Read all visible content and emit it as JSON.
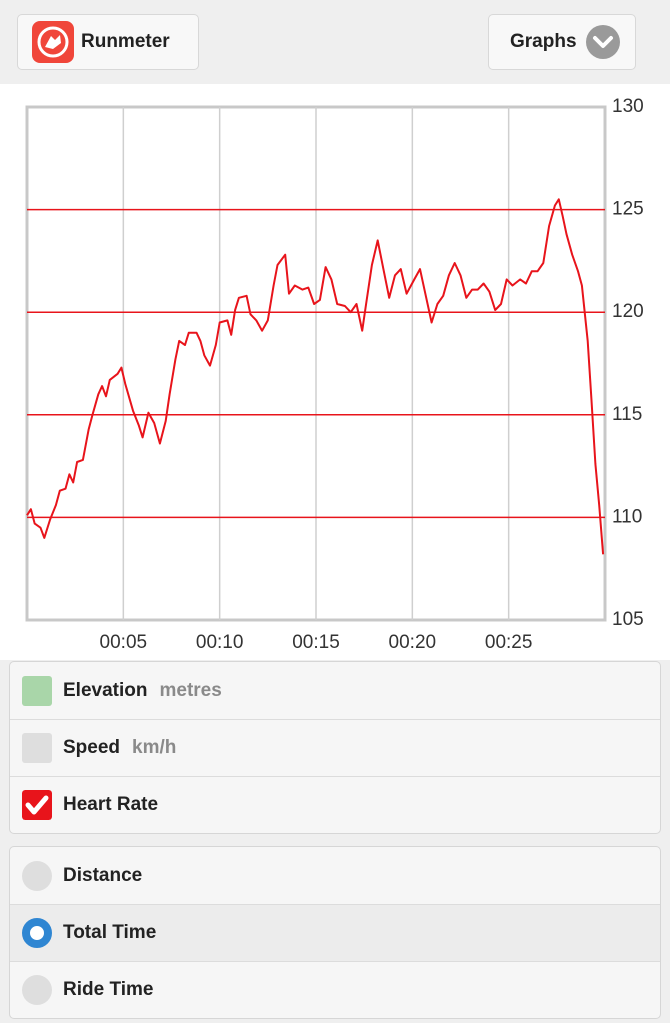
{
  "header": {
    "app_button": "Runmeter",
    "menu_button": "Graphs"
  },
  "chart_data": {
    "type": "line",
    "x": [
      0,
      0.2,
      0.4,
      0.7,
      0.9,
      1.2,
      1.5,
      1.7,
      2.0,
      2.2,
      2.4,
      2.6,
      2.9,
      3.2,
      3.4,
      3.7,
      3.9,
      4.1,
      4.3,
      4.7,
      4.9,
      5.1,
      5.5,
      5.8,
      6.0,
      6.3,
      6.6,
      6.9,
      7.2,
      7.4,
      7.7,
      7.9,
      8.2,
      8.4,
      8.8,
      9.0,
      9.2,
      9.5,
      9.8,
      10.0,
      10.4,
      10.6,
      10.8,
      11.0,
      11.4,
      11.6,
      11.9,
      12.2,
      12.5,
      12.8,
      13.0,
      13.4,
      13.6,
      13.9,
      14.3,
      14.6,
      14.9,
      15.2,
      15.5,
      15.8,
      16.1,
      16.5,
      16.8,
      17.1,
      17.4,
      17.6,
      17.9,
      18.2,
      18.5,
      18.8,
      19.1,
      19.4,
      19.7,
      20.1,
      20.4,
      20.7,
      21.0,
      21.3,
      21.6,
      21.9,
      22.2,
      22.5,
      22.8,
      23.1,
      23.4,
      23.7,
      24.0,
      24.3,
      24.6,
      24.9,
      25.2,
      25.6,
      25.9,
      26.2,
      26.5,
      26.8,
      27.1,
      27.4,
      27.6,
      27.8,
      28.0,
      28.3,
      28.6,
      28.8,
      29.1,
      29.3,
      29.5,
      29.7,
      29.9
    ],
    "series": [
      {
        "name": "Heart Rate",
        "color": "#e8141b",
        "values": [
          110.1,
          110.4,
          109.7,
          109.5,
          109.0,
          109.9,
          110.6,
          111.3,
          111.4,
          112.1,
          111.7,
          112.7,
          112.8,
          114.3,
          115.0,
          116.0,
          116.4,
          115.9,
          116.7,
          117.0,
          117.3,
          116.5,
          115.2,
          114.5,
          113.9,
          115.1,
          114.6,
          113.6,
          114.7,
          116.0,
          117.7,
          118.6,
          118.4,
          119.0,
          119.0,
          118.6,
          117.9,
          117.4,
          118.4,
          119.5,
          119.6,
          118.9,
          120.1,
          120.7,
          120.8,
          119.9,
          119.6,
          119.1,
          119.6,
          121.3,
          122.3,
          122.8,
          120.9,
          121.3,
          121.1,
          121.2,
          120.4,
          120.6,
          122.2,
          121.6,
          120.4,
          120.3,
          120.0,
          120.4,
          119.1,
          120.4,
          122.3,
          123.5,
          122.1,
          120.7,
          121.8,
          122.1,
          120.9,
          121.6,
          122.1,
          120.8,
          119.5,
          120.4,
          120.8,
          121.8,
          122.4,
          121.8,
          120.7,
          121.1,
          121.1,
          121.4,
          121.0,
          120.1,
          120.4,
          121.6,
          121.3,
          121.6,
          121.4,
          122.0,
          122.0,
          122.4,
          124.2,
          125.2,
          125.5,
          124.7,
          123.8,
          122.8,
          122.0,
          121.3,
          118.6,
          115.7,
          112.6,
          110.6,
          108.2
        ]
      }
    ],
    "xlim": [
      0,
      30
    ],
    "xticks": [
      {
        "value": 5,
        "label": "00:05"
      },
      {
        "value": 10,
        "label": "00:10"
      },
      {
        "value": 15,
        "label": "00:15"
      },
      {
        "value": 20,
        "label": "00:20"
      },
      {
        "value": 25,
        "label": "00:25"
      }
    ],
    "ylim": [
      105,
      130
    ],
    "yticks": [
      105,
      110,
      115,
      120,
      125,
      130
    ],
    "grid": true
  },
  "series_options": [
    {
      "label": "Elevation",
      "unit": "metres"
    },
    {
      "label": "Speed",
      "unit": "km/h"
    }
  ],
  "x_axis_options": [
    "Distance",
    "Total Time",
    "Ride Time"
  ]
}
